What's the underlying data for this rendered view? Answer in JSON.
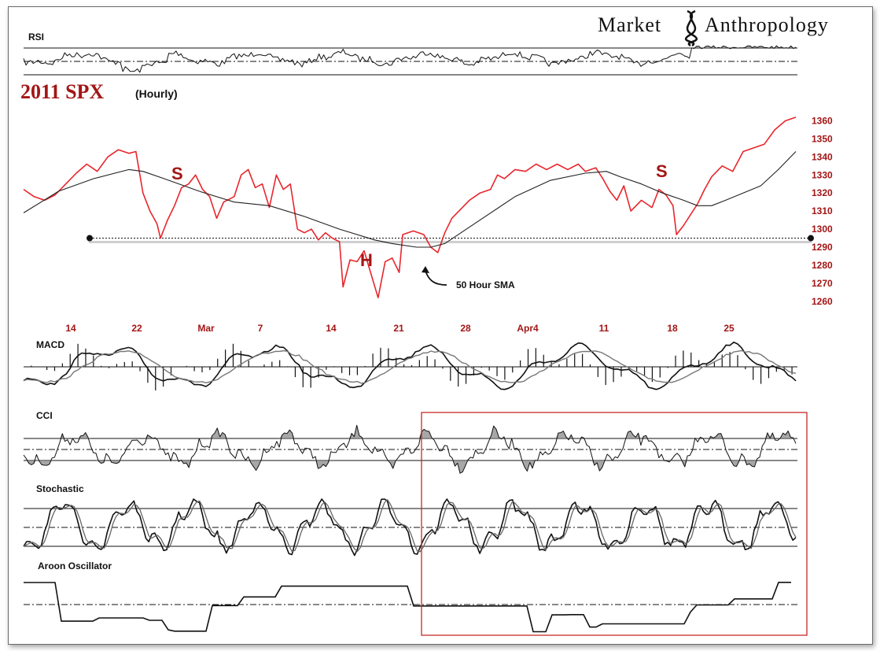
{
  "brand": {
    "left": "Market",
    "right": "Anthropology"
  },
  "title": {
    "main": "2011 SPX",
    "sub": "(Hourly)"
  },
  "panels": {
    "rsi": "RSI",
    "macd": "MACD",
    "cci": "CCI",
    "stochastic": "Stochastic",
    "aroon": "Aroon Oscillator"
  },
  "annotations": {
    "sma_label": "50 Hour SMA",
    "left_shoulder": "S",
    "head": "H",
    "right_shoulder": "S"
  },
  "colors": {
    "price": "#e8262c",
    "sma": "#222222",
    "accent": "#a31515",
    "highlight_box": "#c62828"
  },
  "chart_data": {
    "type": "line",
    "x_tick_labels": [
      "14",
      "22",
      "Mar",
      "7",
      "14",
      "21",
      "28",
      "Apr4",
      "11",
      "18",
      "25"
    ],
    "y_tick_labels": [
      "1360",
      "1350",
      "1340",
      "1330",
      "1320",
      "1310",
      "1300",
      "1290",
      "1280",
      "1270",
      "1260"
    ],
    "ylim": [
      1256,
      1365
    ],
    "neckline_value": 1295,
    "series": [
      {
        "name": "SPX",
        "points": [
          [
            0,
            1322
          ],
          [
            3,
            1318
          ],
          [
            6,
            1316
          ],
          [
            9,
            1319
          ],
          [
            12,
            1325
          ],
          [
            15,
            1331
          ],
          [
            18,
            1336
          ],
          [
            21,
            1332
          ],
          [
            24,
            1340
          ],
          [
            27,
            1344
          ],
          [
            30,
            1342
          ],
          [
            32,
            1343
          ],
          [
            34,
            1320
          ],
          [
            36,
            1310
          ],
          [
            38,
            1303
          ],
          [
            39,
            1295
          ],
          [
            41,
            1305
          ],
          [
            43,
            1313
          ],
          [
            45,
            1323
          ],
          [
            47,
            1325
          ],
          [
            49,
            1330
          ],
          [
            51,
            1322
          ],
          [
            53,
            1318
          ],
          [
            55,
            1306
          ],
          [
            57,
            1315
          ],
          [
            60,
            1318
          ],
          [
            62,
            1330
          ],
          [
            64,
            1333
          ],
          [
            66,
            1323
          ],
          [
            68,
            1325
          ],
          [
            70,
            1312
          ],
          [
            72,
            1330
          ],
          [
            74,
            1322
          ],
          [
            76,
            1325
          ],
          [
            78,
            1300
          ],
          [
            80,
            1298
          ],
          [
            82,
            1300
          ],
          [
            84,
            1294
          ],
          [
            86,
            1298
          ],
          [
            88,
            1295
          ],
          [
            90,
            1293
          ],
          [
            91,
            1268
          ],
          [
            93,
            1283
          ],
          [
            95,
            1282
          ],
          [
            97,
            1288
          ],
          [
            99,
            1275
          ],
          [
            101,
            1262
          ],
          [
            103,
            1282
          ],
          [
            105,
            1284
          ],
          [
            107,
            1276
          ],
          [
            108,
            1297
          ],
          [
            111,
            1299
          ],
          [
            114,
            1297
          ],
          [
            116,
            1290
          ],
          [
            118,
            1287
          ],
          [
            120,
            1298
          ],
          [
            122,
            1306
          ],
          [
            125,
            1312
          ],
          [
            127,
            1316
          ],
          [
            130,
            1320
          ],
          [
            133,
            1322
          ],
          [
            135,
            1330
          ],
          [
            137,
            1328
          ],
          [
            140,
            1333
          ],
          [
            143,
            1332
          ],
          [
            146,
            1336
          ],
          [
            149,
            1333
          ],
          [
            152,
            1336
          ],
          [
            155,
            1333
          ],
          [
            158,
            1336
          ],
          [
            160,
            1332
          ],
          [
            163,
            1334
          ],
          [
            165,
            1328
          ],
          [
            167,
            1321
          ],
          [
            169,
            1316
          ],
          [
            171,
            1324
          ],
          [
            173,
            1310
          ],
          [
            176,
            1316
          ],
          [
            179,
            1312
          ],
          [
            181,
            1322
          ],
          [
            183,
            1319
          ],
          [
            185,
            1313
          ],
          [
            186,
            1297
          ],
          [
            188,
            1302
          ],
          [
            190,
            1308
          ],
          [
            192,
            1314
          ],
          [
            194,
            1322
          ],
          [
            196,
            1329
          ],
          [
            199,
            1335
          ],
          [
            202,
            1332
          ],
          [
            205,
            1343
          ],
          [
            208,
            1345
          ],
          [
            211,
            1347
          ],
          [
            214,
            1355
          ],
          [
            217,
            1360
          ],
          [
            220,
            1362
          ]
        ]
      },
      {
        "name": "50 Hour SMA",
        "points": [
          [
            0,
            1309
          ],
          [
            10,
            1321
          ],
          [
            20,
            1328
          ],
          [
            30,
            1333
          ],
          [
            34,
            1332
          ],
          [
            40,
            1328
          ],
          [
            50,
            1321
          ],
          [
            60,
            1315
          ],
          [
            70,
            1313
          ],
          [
            80,
            1307
          ],
          [
            90,
            1300
          ],
          [
            100,
            1294
          ],
          [
            105,
            1292
          ],
          [
            112,
            1290
          ],
          [
            116,
            1290
          ],
          [
            120,
            1292
          ],
          [
            130,
            1305
          ],
          [
            140,
            1318
          ],
          [
            150,
            1327
          ],
          [
            160,
            1331
          ],
          [
            166,
            1332
          ],
          [
            170,
            1329
          ],
          [
            176,
            1325
          ],
          [
            182,
            1320
          ],
          [
            188,
            1316
          ],
          [
            192,
            1313
          ],
          [
            196,
            1313
          ],
          [
            200,
            1316
          ],
          [
            210,
            1324
          ],
          [
            215,
            1333
          ],
          [
            220,
            1343
          ]
        ]
      }
    ],
    "oscillators": {
      "rsi": {
        "levels": [
          70,
          50,
          30
        ]
      },
      "macd": {
        "level": 0
      },
      "cci": {
        "levels": [
          100,
          0,
          -100
        ]
      },
      "stochastic": {
        "levels": [
          80,
          50,
          20
        ]
      },
      "aroon": {
        "level": 0
      }
    }
  }
}
